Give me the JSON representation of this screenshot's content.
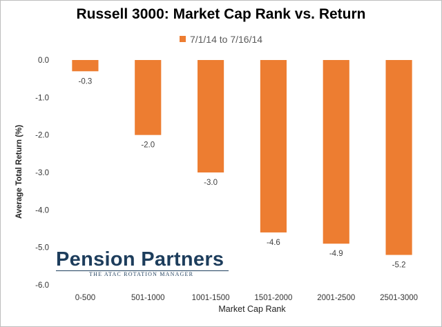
{
  "colors": {
    "bar": "#ED7D31",
    "logo": "#1D3D5C"
  },
  "chart_data": {
    "type": "bar",
    "title": "Russell 3000: Market Cap Rank vs. Return",
    "xlabel": "Market Cap Rank",
    "ylabel": "Average Total Return (%)",
    "categories": [
      "0-500",
      "501-1000",
      "1001-1500",
      "1501-2000",
      "2001-2500",
      "2501-3000"
    ],
    "series": [
      {
        "name": "7/1/14 to 7/16/14",
        "values": [
          -0.3,
          -2.0,
          -3.0,
          -4.6,
          -4.9,
          -5.2
        ]
      }
    ],
    "data_labels": [
      "-0.3",
      "-2.0",
      "-3.0",
      "-4.6",
      "-4.9",
      "-5.2"
    ],
    "ylim": [
      -6.0,
      0.0
    ],
    "yticks": [
      0.0,
      -1.0,
      -2.0,
      -3.0,
      -4.0,
      -5.0,
      -6.0
    ],
    "ytick_labels": [
      "0.0",
      "-1.0",
      "-2.0",
      "-3.0",
      "-4.0",
      "-5.0",
      "-6.0"
    ],
    "grid": false,
    "legend_position": "top"
  },
  "watermark": {
    "main": "Pension Partners",
    "sub": "THE ATAC ROTATION MANAGER"
  }
}
